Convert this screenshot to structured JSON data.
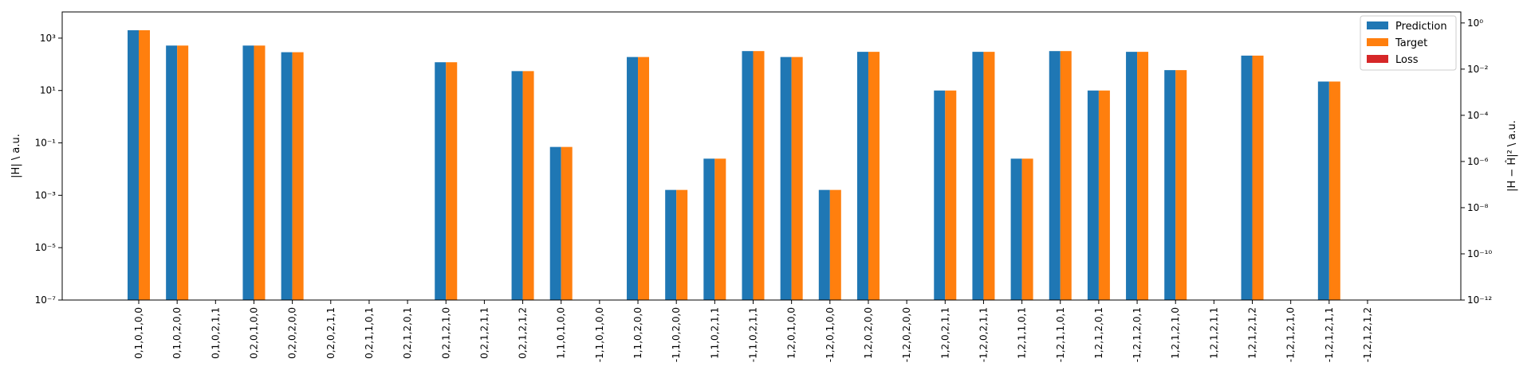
{
  "chart_data": {
    "type": "bar",
    "categories": [
      "0,1,0,1,0,0",
      "0,1,0,2,0,0",
      "0,1,0,2,1,1",
      "0,2,0,1,0,0",
      "0,2,0,2,0,0",
      "0,2,0,2,1,1",
      "0,2,1,1,0,1",
      "0,2,1,2,0,1",
      "0,2,1,2,1,0",
      "0,2,1,2,1,1",
      "0,2,1,2,1,2",
      "1,1,0,1,0,0",
      "-1,1,0,1,0,0",
      "1,1,0,2,0,0",
      "-1,1,0,2,0,0",
      "1,1,0,2,1,1",
      "-1,1,0,2,1,1",
      "1,2,0,1,0,0",
      "-1,2,0,1,0,0",
      "1,2,0,2,0,0",
      "-1,2,0,2,0,0",
      "1,2,0,2,1,1",
      "-1,2,0,2,1,1",
      "1,2,1,1,0,1",
      "-1,2,1,1,0,1",
      "1,2,1,2,0,1",
      "-1,2,1,2,0,1",
      "1,2,1,2,1,0",
      "1,2,1,2,1,1",
      "1,2,1,2,1,2",
      "-1,2,1,2,1,0",
      "-1,2,1,2,1,1",
      "-1,2,1,2,1,2"
    ],
    "series": [
      {
        "name": "Prediction",
        "color": "#1f77b4",
        "axis": "left",
        "values": [
          2000,
          520,
          null,
          520,
          290,
          null,
          null,
          null,
          120,
          null,
          55,
          0.07,
          null,
          190,
          0.0016,
          0.025,
          320,
          190,
          0.0016,
          300,
          null,
          10,
          300,
          0.025,
          320,
          10,
          300,
          60,
          null,
          215,
          null,
          22,
          null
        ]
      },
      {
        "name": "Target",
        "color": "#ff7f0e",
        "axis": "left",
        "values": [
          2000,
          520,
          null,
          520,
          290,
          null,
          null,
          null,
          120,
          null,
          55,
          0.07,
          null,
          190,
          0.0016,
          0.025,
          320,
          190,
          0.0016,
          300,
          null,
          10,
          300,
          0.025,
          320,
          10,
          300,
          60,
          null,
          215,
          null,
          22,
          null
        ]
      },
      {
        "name": "Loss",
        "color": "#d62728",
        "axis": "right",
        "values": [
          null,
          null,
          null,
          null,
          null,
          null,
          null,
          null,
          null,
          null,
          null,
          null,
          null,
          null,
          null,
          null,
          null,
          null,
          null,
          null,
          null,
          null,
          null,
          null,
          null,
          null,
          null,
          null,
          null,
          null,
          null,
          null,
          null
        ]
      }
    ],
    "ylabel": "|H| \\ a.u.",
    "ylabel_right": "|H − Ĥ|² \\ a.u.",
    "yscale": "log",
    "ylim": [
      1e-07,
      10000
    ],
    "ylim_right": [
      1e-12,
      3
    ],
    "yticks_left": [
      {
        "value": 1e-07,
        "label": "10⁻⁷"
      },
      {
        "value": 1e-05,
        "label": "10⁻⁵"
      },
      {
        "value": 0.001,
        "label": "10⁻³"
      },
      {
        "value": 0.1,
        "label": "10⁻¹"
      },
      {
        "value": 10,
        "label": "10¹"
      },
      {
        "value": 1000,
        "label": "10³"
      }
    ],
    "yticks_right": [
      {
        "value": 1e-12,
        "label": "10⁻¹²"
      },
      {
        "value": 1e-10,
        "label": "10⁻¹⁰"
      },
      {
        "value": 1e-08,
        "label": "10⁻⁸"
      },
      {
        "value": 1e-06,
        "label": "10⁻⁶"
      },
      {
        "value": 0.0001,
        "label": "10⁻⁴"
      },
      {
        "value": 0.01,
        "label": "10⁻²"
      },
      {
        "value": 1,
        "label": "10⁰"
      }
    ],
    "legend": {
      "placement": "top-right",
      "entries": [
        "Prediction",
        "Target",
        "Loss"
      ]
    },
    "grid": false
  }
}
